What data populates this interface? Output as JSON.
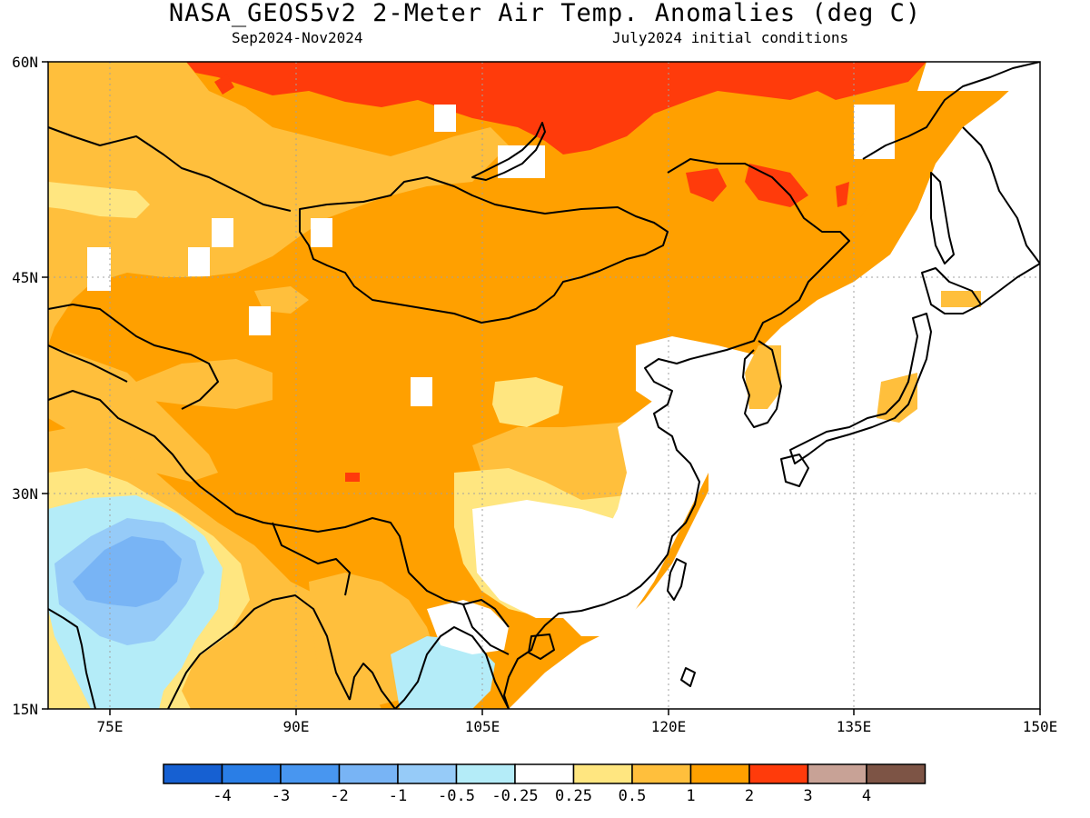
{
  "title": "NASA_GEOS5v2 2-Meter Air Temp. Anomalies (deg C)",
  "subtitle_left": "Sep2024-Nov2024",
  "subtitle_right": "July2024 initial conditions",
  "map": {
    "lat_labels": [
      "60N",
      "45N",
      "30N",
      "15N"
    ],
    "lon_labels": [
      "75E",
      "90E",
      "105E",
      "120E",
      "135E",
      "150E"
    ],
    "lat_range": [
      15,
      60
    ],
    "lon_range": [
      70,
      150
    ]
  },
  "colorbar": {
    "labels": [
      "-4",
      "-3",
      "-2",
      "-1",
      "-0.5",
      "-0.25",
      "0.25",
      "0.5",
      "1",
      "2",
      "3",
      "4"
    ],
    "colors": [
      "#1660d2",
      "#2a7ee6",
      "#4896f0",
      "#78b4f5",
      "#96cbf8",
      "#b4ecf8",
      "#ffffff",
      "#ffe680",
      "#ffbf3c",
      "#ffa000",
      "#ff3b0b",
      "#c8a296",
      "#7d5445"
    ]
  }
}
